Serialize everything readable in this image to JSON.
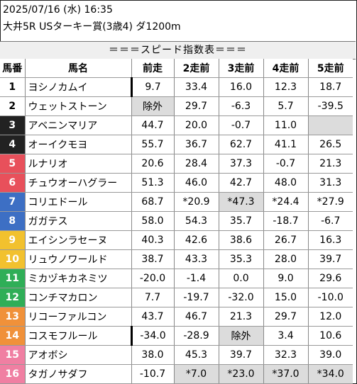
{
  "header": {
    "datetime": "2025/07/16 (水) 16:35",
    "race": "大井5R USターキー賞(3歳4) ダ1200m"
  },
  "banner": "＝＝＝スピード指数表＝＝＝",
  "table": {
    "columns": [
      "馬番",
      "馬名",
      "前走",
      "2走前",
      "3走前",
      "4走前",
      "5走前"
    ],
    "rows": [
      {
        "num": "1",
        "name": "ヨシノカムイ",
        "bg": "#ffffff",
        "fg": "#000000",
        "vals": [
          "9.7",
          "33.4",
          "16.0",
          "12.3",
          "18.7"
        ],
        "gray": [
          false,
          false,
          false,
          false,
          false
        ]
      },
      {
        "num": "2",
        "name": "ウェットストーン",
        "bg": "#ffffff",
        "fg": "#000000",
        "vals": [
          "除外",
          "29.7",
          "-6.3",
          "5.7",
          "-39.5"
        ],
        "gray": [
          true,
          false,
          false,
          false,
          false
        ]
      },
      {
        "num": "3",
        "name": "アベニンマリア",
        "bg": "#222222",
        "fg": "#ffffff",
        "vals": [
          "44.7",
          "20.0",
          "-0.7",
          "11.0",
          ""
        ],
        "gray": [
          false,
          false,
          false,
          false,
          true
        ]
      },
      {
        "num": "4",
        "name": "オーイクモヨ",
        "bg": "#222222",
        "fg": "#ffffff",
        "vals": [
          "55.7",
          "36.7",
          "62.7",
          "41.1",
          "26.5"
        ],
        "gray": [
          false,
          false,
          false,
          false,
          false
        ]
      },
      {
        "num": "5",
        "name": "ルナリオ",
        "bg": "#e8505b",
        "fg": "#ffffff",
        "vals": [
          "20.6",
          "28.4",
          "37.3",
          "-0.7",
          "21.3"
        ],
        "gray": [
          false,
          false,
          false,
          false,
          false
        ]
      },
      {
        "num": "6",
        "name": "チュウオーハグラー",
        "bg": "#e8505b",
        "fg": "#ffffff",
        "vals": [
          "51.3",
          "46.0",
          "42.7",
          "48.0",
          "31.3"
        ],
        "gray": [
          false,
          false,
          false,
          false,
          false
        ]
      },
      {
        "num": "7",
        "name": "コリエドール",
        "bg": "#3d6fc4",
        "fg": "#ffffff",
        "vals": [
          "68.7",
          "*20.9",
          "*47.3",
          "*24.4",
          "*27.9"
        ],
        "gray": [
          false,
          false,
          true,
          false,
          false
        ]
      },
      {
        "num": "8",
        "name": "ガガテス",
        "bg": "#3d6fc4",
        "fg": "#ffffff",
        "vals": [
          "58.0",
          "54.3",
          "35.7",
          "-18.7",
          "-6.7"
        ],
        "gray": [
          false,
          false,
          false,
          false,
          false
        ]
      },
      {
        "num": "9",
        "name": "エイシンラセーヌ",
        "bg": "#f2c12e",
        "fg": "#ffffff",
        "vals": [
          "40.3",
          "42.6",
          "38.6",
          "26.7",
          "16.3"
        ],
        "gray": [
          false,
          false,
          false,
          false,
          false
        ]
      },
      {
        "num": "10",
        "name": "リュウノワールド",
        "bg": "#f2c12e",
        "fg": "#ffffff",
        "vals": [
          "38.7",
          "43.3",
          "35.3",
          "28.0",
          "39.7"
        ],
        "gray": [
          false,
          false,
          false,
          false,
          false
        ]
      },
      {
        "num": "11",
        "name": "ミカヅキカネミツ",
        "bg": "#2fae57",
        "fg": "#ffffff",
        "vals": [
          "-20.0",
          "-1.4",
          "0.0",
          "9.0",
          "29.6"
        ],
        "gray": [
          false,
          false,
          false,
          false,
          false
        ]
      },
      {
        "num": "12",
        "name": "コンチマカロン",
        "bg": "#2fae57",
        "fg": "#ffffff",
        "vals": [
          "7.7",
          "-19.7",
          "-32.0",
          "15.0",
          "-10.0"
        ],
        "gray": [
          false,
          false,
          false,
          false,
          false
        ]
      },
      {
        "num": "13",
        "name": "リコーファルコン",
        "bg": "#f0913a",
        "fg": "#ffffff",
        "vals": [
          "43.7",
          "46.7",
          "21.3",
          "29.7",
          "12.0"
        ],
        "gray": [
          false,
          false,
          false,
          false,
          false
        ]
      },
      {
        "num": "14",
        "name": "コスモフルール",
        "bg": "#f0913a",
        "fg": "#ffffff",
        "vals": [
          "-34.0",
          "-28.9",
          "除外",
          "3.4",
          "10.6"
        ],
        "gray": [
          false,
          false,
          true,
          false,
          false
        ]
      },
      {
        "num": "15",
        "name": "アオボシ",
        "bg": "#f07fa2",
        "fg": "#ffffff",
        "vals": [
          "38.0",
          "45.3",
          "39.7",
          "32.3",
          "39.0"
        ],
        "gray": [
          false,
          false,
          false,
          false,
          false
        ]
      },
      {
        "num": "16",
        "name": "タガノサダフ",
        "bg": "#f07fa2",
        "fg": "#ffffff",
        "vals": [
          "-10.7",
          "*7.0",
          "*23.0",
          "*37.0",
          "*34.0"
        ],
        "gray": [
          false,
          true,
          true,
          true,
          true
        ]
      }
    ]
  }
}
